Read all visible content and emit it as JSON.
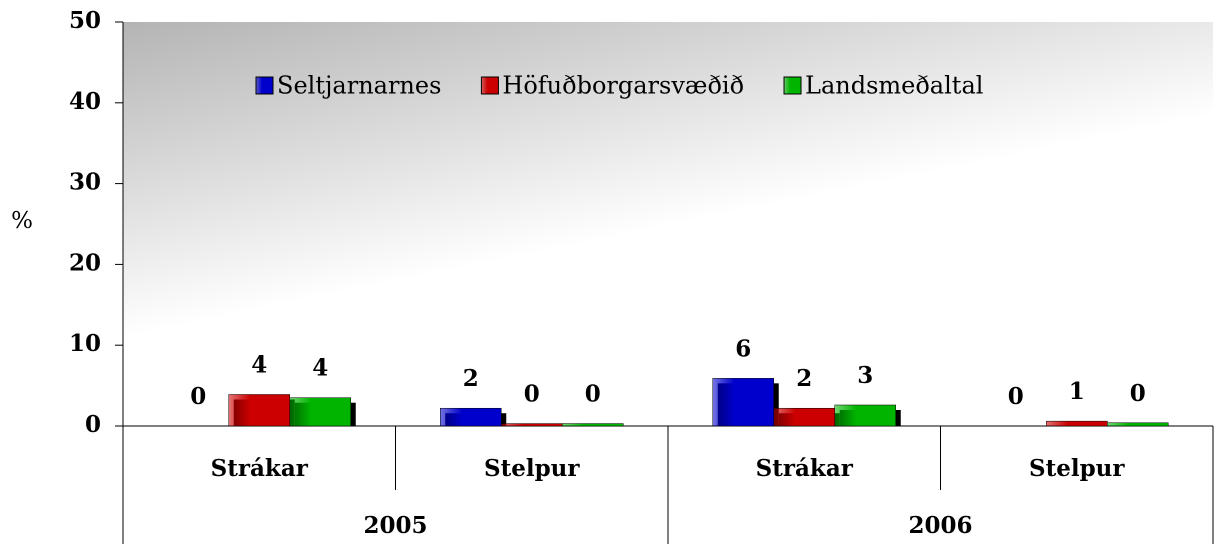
{
  "chart_data": {
    "type": "bar",
    "y_label": "%",
    "groups": [
      {
        "name": "2005",
        "categories": [
          "Strákar",
          "Stelpur"
        ]
      },
      {
        "name": "2006",
        "categories": [
          "Strákar",
          "Stelpur"
        ]
      }
    ],
    "series": [
      {
        "name": "Seltjarnarnes",
        "color": "#0000cc",
        "values": [
          0,
          2.2,
          5.9,
          0
        ],
        "value_labels": [
          "0",
          "2",
          "6",
          "0"
        ]
      },
      {
        "name": "Höfuðborgarsvæðið",
        "color": "#cc0000",
        "values": [
          3.9,
          0.3,
          2.2,
          0.6
        ],
        "value_labels": [
          "4",
          "0",
          "2",
          "1"
        ]
      },
      {
        "name": "Landsmeðaltal",
        "color": "#00b400",
        "values": [
          3.5,
          0.3,
          2.6,
          0.4
        ],
        "value_labels": [
          "4",
          "0",
          "3",
          "0"
        ]
      }
    ],
    "ylim": [
      0,
      50
    ],
    "yticks": [
      0,
      10,
      20,
      30,
      40,
      50
    ]
  }
}
